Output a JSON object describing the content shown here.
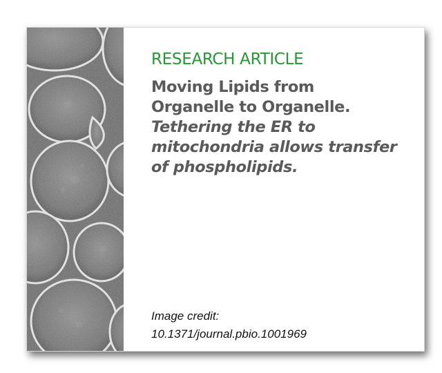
{
  "article": {
    "kicker": "RESEARCH ARTICLE",
    "kicker_color": "#229a31",
    "title_line1": "Moving Lipids from",
    "title_line2": "Organelle to Organelle.",
    "subtitle": "Tethering the ER to mitochondria allows transfer of phospholipids.",
    "text_color": "#5a5a5a"
  },
  "credit": {
    "label": "Image credit:",
    "doi": "10.1371/journal.pbio.1001969"
  },
  "image": {
    "subject": "micrograph-yeast-cells",
    "tone": "grayscale"
  }
}
